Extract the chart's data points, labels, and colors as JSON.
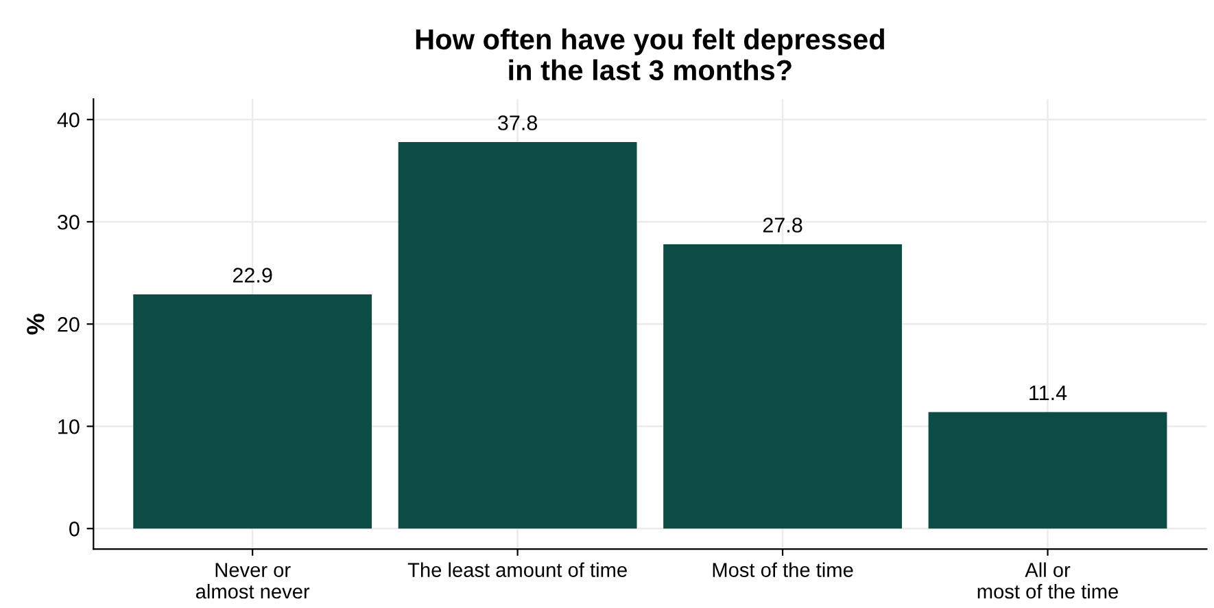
{
  "chart_data": {
    "type": "bar",
    "title": "How often have you felt depressed\nin the last 3 months?",
    "ylabel": "%",
    "categories": [
      "Never or\nalmost never",
      "The least amount of time",
      "Most of the time",
      "All or\nmost of the time"
    ],
    "values": [
      22.9,
      37.8,
      27.8,
      11.4
    ],
    "color": "#0b4d45",
    "ylim": [
      -2,
      42
    ],
    "yticks": [
      0,
      10,
      20,
      30,
      40
    ],
    "grid": true,
    "data_labels": true
  }
}
